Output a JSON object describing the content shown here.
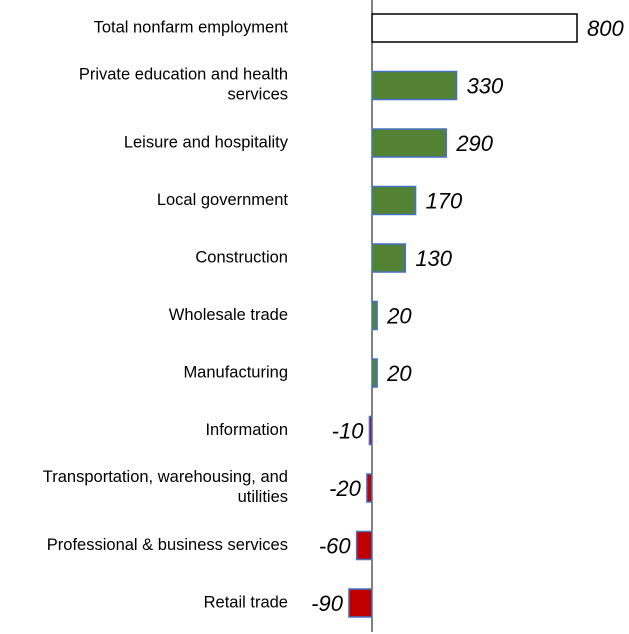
{
  "chart_data": {
    "type": "barh",
    "categories": [
      "Total nonfarm employment",
      "Private education and health\nservices",
      "Leisure and hospitality",
      "Local government",
      "Construction",
      "Wholesale trade",
      "Manufacturing",
      "Information",
      "Transportation, warehousing, and\nutilities",
      "Professional & business services",
      "Retail trade"
    ],
    "values": [
      800,
      330,
      290,
      170,
      130,
      20,
      20,
      -10,
      -20,
      -60,
      -90
    ],
    "colors": [
      "#ffffff",
      "#548235",
      "#548235",
      "#548235",
      "#548235",
      "#548235",
      "#548235",
      "#c00000",
      "#c00000",
      "#c00000",
      "#c00000"
    ],
    "edge_colors": [
      "#000000",
      "#4472c4",
      "#4472c4",
      "#4472c4",
      "#4472c4",
      "#4472c4",
      "#4472c4",
      "#4472c4",
      "#4472c4",
      "#4472c4",
      "#4472c4"
    ]
  }
}
